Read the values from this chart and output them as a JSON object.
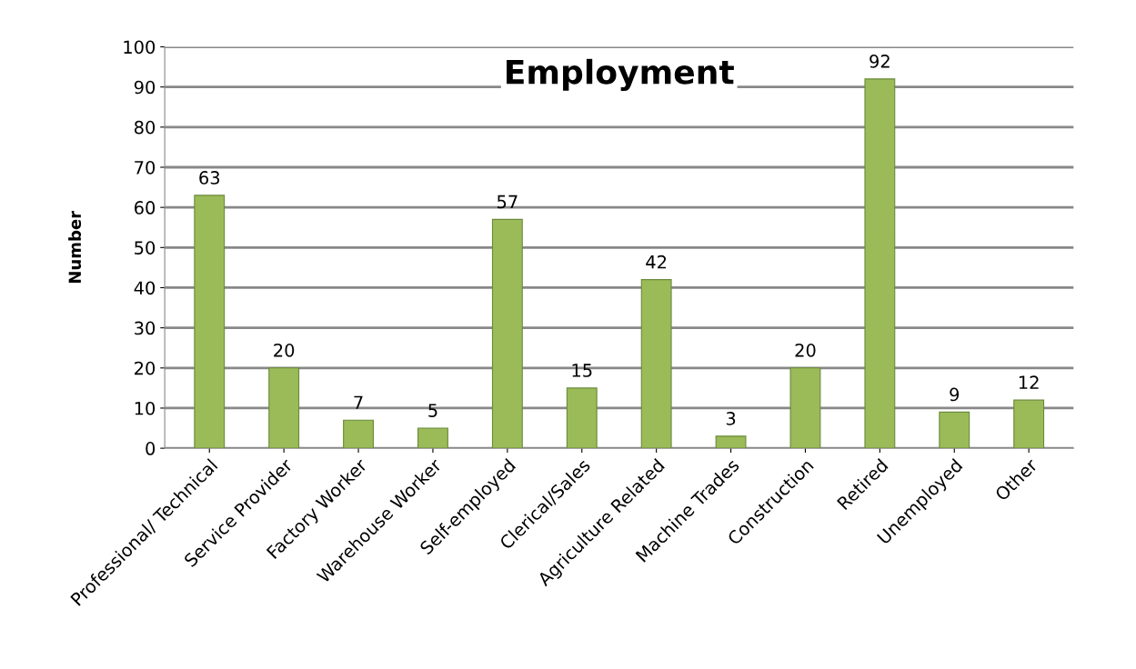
{
  "chart_data": {
    "type": "bar",
    "title": "Employment",
    "ylabel": "Number",
    "categories": [
      "Professional/ Technical",
      "Service Provider",
      "Factory Worker",
      "Warehouse Worker",
      "Self-employed",
      "Clerical/Sales",
      "Agriculture Related",
      "Machine Trades",
      "Construction",
      "Retired",
      "Unemployed",
      "Other"
    ],
    "values": [
      63,
      20,
      7,
      5,
      57,
      15,
      42,
      3,
      20,
      92,
      9,
      12
    ],
    "color": "#9bbb59",
    "ylim": [
      0,
      100
    ],
    "yticks": [
      0,
      10,
      20,
      30,
      40,
      50,
      60,
      70,
      80,
      90,
      100
    ],
    "grid": "y",
    "data_labels": true,
    "legend": false
  }
}
